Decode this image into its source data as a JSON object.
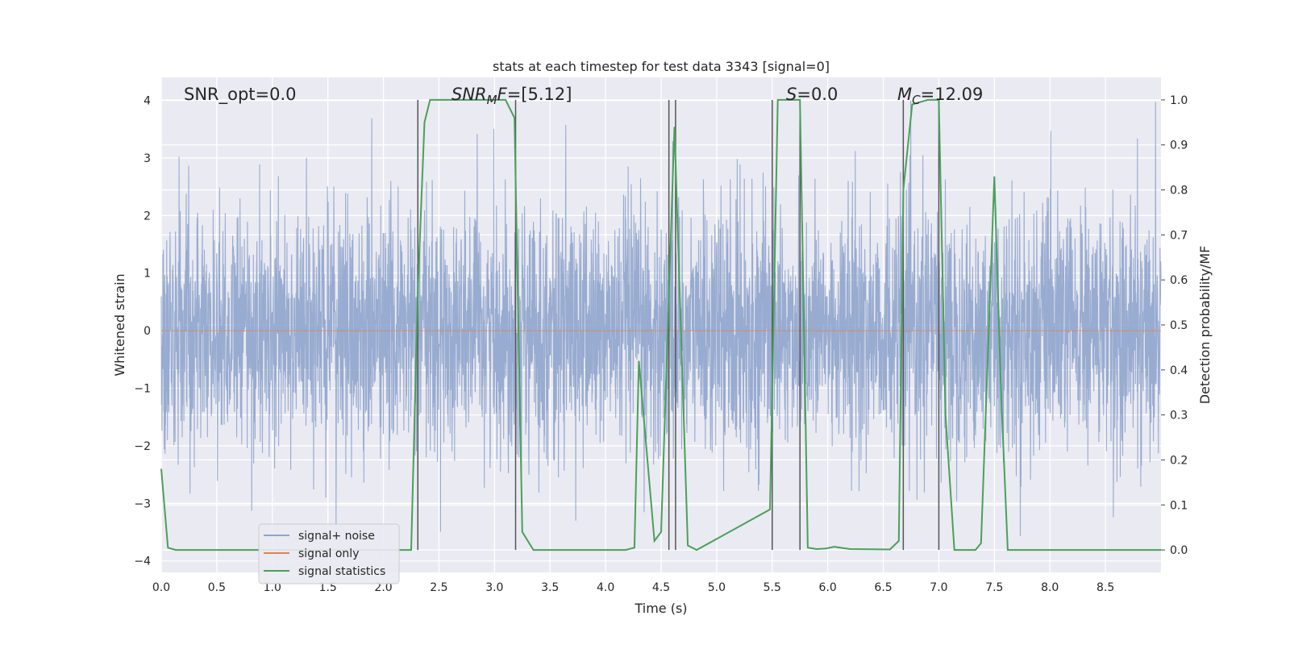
{
  "chart_data": {
    "type": "line",
    "title": "stats at each timestep for test data 3343 [signal=0]",
    "xlabel": "Time (s)",
    "ylabel_left": "Whitened strain",
    "ylabel_right": "Detection probability/MF",
    "xlim": [
      0,
      9
    ],
    "ylim_left": [
      -4.2,
      4.4
    ],
    "ylim_right": [
      -0.05,
      1.05
    ],
    "x_ticks": [
      "0.0",
      "0.5",
      "1.0",
      "1.5",
      "2.0",
      "2.5",
      "3.0",
      "3.5",
      "4.0",
      "4.5",
      "5.0",
      "5.5",
      "6.0",
      "6.5",
      "7.0",
      "7.5",
      "8.0",
      "8.5"
    ],
    "y_left_ticks": [
      "4",
      "3",
      "2",
      "1",
      "0",
      "−1",
      "−2",
      "−3",
      "−4"
    ],
    "y_right_ticks": [
      "1.0",
      "0.9",
      "0.8",
      "0.7",
      "0.6",
      "0.5",
      "0.4",
      "0.3",
      "0.2",
      "0.1",
      "0.0"
    ],
    "grid": true,
    "legend_placement": "lower-left",
    "annotations": {
      "snr_opt": "SNR_opt=0.0",
      "snr_mf_italic": "SNR",
      "snr_mf_sub": "M",
      "snr_mf_italic2": "F",
      "snr_mf_value": "=[5.12]",
      "s_italic": "S",
      "s_value": "=0.0",
      "mc_italic": "M",
      "mc_sub": "C",
      "mc_value": "=12.09"
    },
    "series": [
      {
        "name": "signal+ noise",
        "color": "#8fa4cc",
        "axis": "left",
        "description": "whitened noise, band ≈ ±1.5"
      },
      {
        "name": "signal only",
        "color": "#dd8452",
        "axis": "left",
        "values_constant": 0
      },
      {
        "name": "signal statistics",
        "color": "#4aa05a",
        "axis": "right",
        "x": [
          0.0,
          0.06,
          0.13,
          2.25,
          2.31,
          2.37,
          2.42,
          3.1,
          3.18,
          3.25,
          3.35,
          4.18,
          4.26,
          4.3,
          4.44,
          4.5,
          4.62,
          4.74,
          4.82,
          5.48,
          5.55,
          5.75,
          5.82,
          5.9,
          5.98,
          6.06,
          6.2,
          6.56,
          6.64,
          6.68,
          6.76,
          6.9,
          7.0,
          7.06,
          7.14,
          7.33,
          7.38,
          7.5,
          7.56,
          7.62,
          9.0
        ],
        "y": [
          0.18,
          0.005,
          0.0,
          0.0,
          0.58,
          0.95,
          1.0,
          1.0,
          0.96,
          0.04,
          0.0,
          0.0,
          0.005,
          0.42,
          0.02,
          0.04,
          0.94,
          0.01,
          0.0,
          0.09,
          1.0,
          1.0,
          0.005,
          0.002,
          0.003,
          0.007,
          0.002,
          0.001,
          0.02,
          0.8,
          0.99,
          1.0,
          1.0,
          0.3,
          0.0,
          0.0,
          0.015,
          0.83,
          0.35,
          0.0,
          0.0
        ]
      }
    ],
    "vertical_markers": [
      2.31,
      3.19,
      4.57,
      4.63,
      5.5,
      5.75,
      6.68,
      7.0
    ]
  },
  "legend": {
    "items": [
      {
        "label": "signal+ noise",
        "color": "#8fa4cc"
      },
      {
        "label": "signal only",
        "color": "#dd8452"
      },
      {
        "label": "signal statistics",
        "color": "#4aa05a"
      }
    ]
  },
  "colors": {
    "axes_bg": "#eaeaf2",
    "grid": "#ffffff",
    "marker": "#555555"
  }
}
